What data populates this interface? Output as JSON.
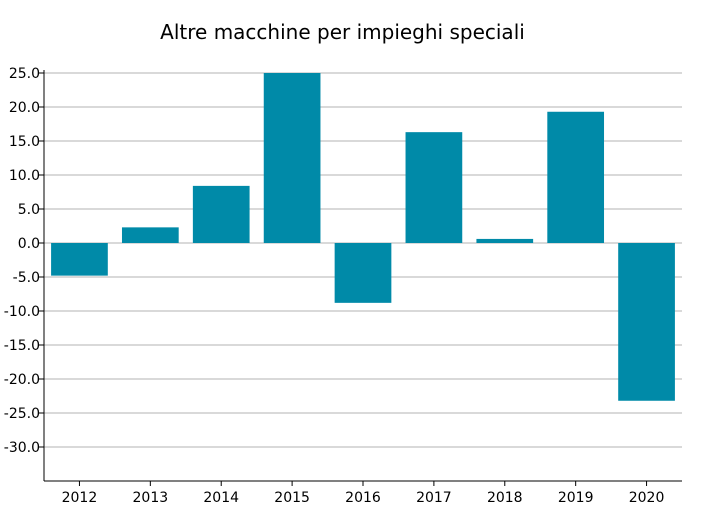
{
  "chart_data": {
    "type": "bar",
    "title": "Altre macchine per impieghi speciali",
    "xlabel": "",
    "ylabel": "",
    "categories": [
      "2012",
      "2013",
      "2014",
      "2015",
      "2016",
      "2017",
      "2018",
      "2019",
      "2020"
    ],
    "values": [
      -4.8,
      2.3,
      8.4,
      25.0,
      -8.8,
      16.3,
      0.6,
      19.3,
      -23.2
    ],
    "ylim": [
      -35,
      25
    ],
    "yticks": [
      25,
      20,
      15,
      10,
      5,
      0,
      -5,
      -10,
      -15,
      -20,
      -25,
      -30
    ],
    "ytick_labels": [
      "25.0",
      "20.0",
      "15.0",
      "10.0",
      "5.0",
      "0.0",
      "-5.0",
      "-10.0",
      "-15.0",
      "-20.0",
      "-25.0",
      "-30.0"
    ],
    "grid": true,
    "bar_color": "#008aa8",
    "grid_color": "#b3b3b3",
    "axis_color": "#000000"
  }
}
